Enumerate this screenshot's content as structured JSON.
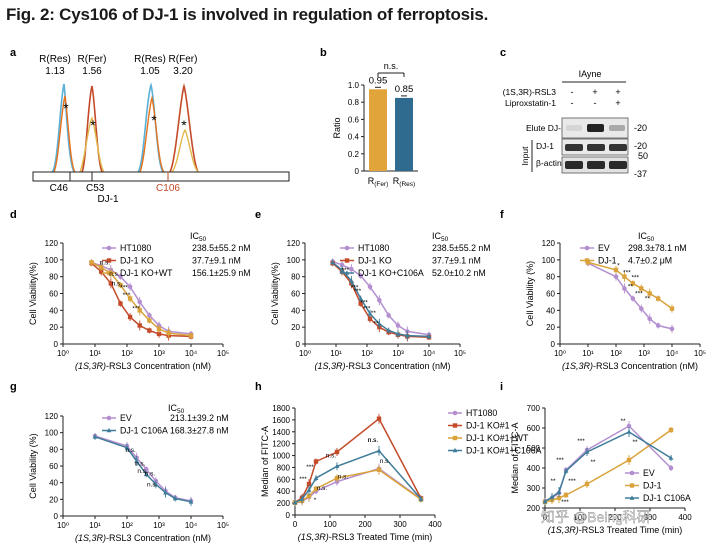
{
  "figure_title": "Fig. 2: Cys106 of DJ-1 is involved in regulation of ferroptosis.",
  "watermark": "知乎 @Being科研",
  "colors": {
    "purple": "#b48fd0",
    "red": "#c44a2a",
    "gold": "#d9a23a",
    "blue": "#3f7c99",
    "cyan": "#5bb0d8",
    "orange": "#e5731f",
    "bar_orange": "#e0a43a",
    "bar_blue": "#2f6b8f"
  },
  "panel_a": {
    "label": "a",
    "peaks": [
      {
        "label": "R(Res)",
        "ratio": "1.13"
      },
      {
        "label": "R(Fer)",
        "ratio": "1.56"
      },
      {
        "label": "R(Res)",
        "ratio": "1.05"
      },
      {
        "label": "R(Fer)",
        "ratio": "3.20"
      }
    ],
    "residues": [
      "C46",
      "C53",
      "C106"
    ],
    "protein": "DJ-1",
    "marker": "*"
  },
  "panel_b": {
    "label": "b",
    "chart_data": {
      "type": "bar",
      "categories": [
        "R(Fer)",
        "R(Res)"
      ],
      "values": [
        0.95,
        0.85
      ],
      "value_labels": [
        "0.95",
        "0.85"
      ],
      "ylabel": "Ratio",
      "ylim": [
        0,
        1.0
      ],
      "yticks": [
        "0",
        "0.2",
        "0.4",
        "0.6",
        "0.8",
        "1.0"
      ],
      "significance": "n.s."
    }
  },
  "panel_c": {
    "label": "c",
    "header": "IAyne",
    "conditions": [
      {
        "name": "(1S,3R)-RSL3",
        "marks": [
          "-",
          "+",
          "+"
        ]
      },
      {
        "name": "Liproxstatin-1",
        "marks": [
          "-",
          "-",
          "+"
        ]
      }
    ],
    "rows": [
      "Elute DJ-1",
      "DJ-1",
      "β-actin"
    ],
    "input_label": "Input",
    "mw_markers": [
      "-20",
      "-20",
      "50",
      "-37"
    ]
  },
  "chart_data": [
    {
      "panel": "d",
      "type": "line",
      "xlabel": "(1S,3R)-RSL3 Concentration (nM)",
      "ylabel": "Cell Viability(%)",
      "x": [
        7.8,
        15.6,
        31.3,
        62.5,
        125,
        250,
        500,
        1000,
        2000,
        10000
      ],
      "ylim": [
        0,
        120
      ],
      "xlim": [
        1,
        100000
      ],
      "yticks": [
        "0",
        "20",
        "40",
        "60",
        "80",
        "100",
        "120"
      ],
      "xticks": [
        "10⁰",
        "10¹",
        "10²",
        "10³",
        "10⁴",
        "10⁵"
      ],
      "ic50_header": "IC50",
      "series": [
        {
          "name": "HT1080",
          "ic50": "238.5±55.2 nM",
          "color": "purple",
          "values": [
            97,
            93,
            88,
            80,
            68,
            50,
            34,
            22,
            15,
            12
          ]
        },
        {
          "name": "DJ-1 KO",
          "ic50": "37.7±9.1 nM",
          "color": "red",
          "values": [
            96,
            86,
            72,
            48,
            32,
            22,
            16,
            12,
            10,
            9
          ]
        },
        {
          "name": "DJ-1 KO+WT",
          "ic50": "156.1±25.9 nM",
          "color": "gold",
          "values": [
            97,
            91,
            84,
            70,
            54,
            40,
            28,
            18,
            13,
            10
          ]
        }
      ],
      "annotations": [
        "n.s.",
        "n.s.",
        "n.s.",
        "***",
        "***",
        "***"
      ]
    },
    {
      "panel": "e",
      "type": "line",
      "xlabel": "(1S,3R)-RSL3 Concentration (nM)",
      "ylabel": "Cell Viability(%)",
      "x": [
        7.8,
        15.6,
        31.3,
        62.5,
        125,
        250,
        500,
        1000,
        2000,
        10000
      ],
      "ylim": [
        0,
        120
      ],
      "xlim": [
        1,
        100000
      ],
      "yticks": [
        "0",
        "20",
        "40",
        "60",
        "80",
        "100",
        "120"
      ],
      "xticks": [
        "10⁰",
        "10¹",
        "10²",
        "10³",
        "10⁴",
        "10⁵"
      ],
      "ic50_header": "IC50",
      "series": [
        {
          "name": "HT1080",
          "ic50": "238.5±55.2 nM",
          "color": "purple",
          "values": [
            98,
            94,
            89,
            81,
            68,
            52,
            34,
            22,
            15,
            11
          ]
        },
        {
          "name": "DJ-1 KO",
          "ic50": "37.7±9.1 nM",
          "color": "red",
          "values": [
            96,
            86,
            72,
            48,
            30,
            20,
            14,
            11,
            9,
            8
          ]
        },
        {
          "name": "DJ-1 KO+C106A",
          "ic50": "52.0±10.2 nM",
          "color": "blue",
          "values": [
            97,
            88,
            75,
            54,
            36,
            24,
            16,
            12,
            10,
            9
          ]
        }
      ],
      "annotations": [
        "***",
        "***",
        "***",
        "***",
        "***",
        "**",
        "**"
      ]
    },
    {
      "panel": "f",
      "type": "line",
      "xlabel": "(1S,3R)-RSL3 Concentration (nM)",
      "ylabel": "Cell Viability (%)",
      "x": [
        10,
        100,
        200,
        400,
        800,
        1600,
        3200,
        10000
      ],
      "ylim": [
        0,
        120
      ],
      "xlim": [
        1,
        100000
      ],
      "yticks": [
        "0",
        "20",
        "40",
        "60",
        "80",
        "100",
        "120"
      ],
      "xticks": [
        "10⁰",
        "10¹",
        "10²",
        "10³",
        "10⁴",
        "10⁵"
      ],
      "ic50_header": "IC50",
      "series": [
        {
          "name": "EV",
          "ic50": "298.3±78.1 nM",
          "color": "purple",
          "values": [
            96,
            80,
            66,
            54,
            42,
            30,
            22,
            18
          ]
        },
        {
          "name": "DJ-1",
          "ic50": "4.7±0.2 μM",
          "color": "gold",
          "values": [
            97,
            88,
            80,
            72,
            66,
            60,
            54,
            42
          ]
        }
      ],
      "annotations": [
        "*",
        "**",
        "***",
        "***",
        "***",
        "**"
      ]
    },
    {
      "panel": "g",
      "type": "line",
      "xlabel": "(1S,3R)-RSL3 Concentration (nM)",
      "ylabel": "Cell Viability (%)",
      "x": [
        10,
        100,
        200,
        400,
        800,
        1600,
        3200,
        10000
      ],
      "ylim": [
        0,
        120
      ],
      "xlim": [
        1,
        100000
      ],
      "yticks": [
        "0",
        "20",
        "40",
        "60",
        "80",
        "100",
        "120"
      ],
      "xticks": [
        "10⁰",
        "10¹",
        "10²",
        "10³",
        "10⁴",
        "10⁵"
      ],
      "ic50_header": "IC50",
      "series": [
        {
          "name": "EV",
          "ic50": "213.1±39.2 nM",
          "color": "purple",
          "values": [
            96,
            84,
            70,
            56,
            42,
            30,
            22,
            18
          ]
        },
        {
          "name": "DJ-1 C106A",
          "ic50": "168.3±27.8 nM",
          "color": "blue",
          "values": [
            95,
            82,
            66,
            50,
            38,
            28,
            21,
            17
          ]
        }
      ],
      "annotations": [
        "n.s.",
        "n.s.",
        "n.s.",
        "n.s.",
        "n.s."
      ]
    },
    {
      "panel": "h",
      "type": "line",
      "xlabel": "(1S,3R)-RSL3 Treated Time (min)",
      "ylabel": "Median of FITC-A",
      "x": [
        0,
        20,
        40,
        60,
        120,
        240,
        360
      ],
      "ylim": [
        0,
        1800
      ],
      "xlim": [
        0,
        400
      ],
      "yticks": [
        "0",
        "200",
        "400",
        "600",
        "800",
        "1000",
        "1200",
        "1400",
        "1600",
        "1800"
      ],
      "xticks": [
        "0",
        "100",
        "200",
        "300",
        "400"
      ],
      "series": [
        {
          "name": "HT1080",
          "color": "purple",
          "values": [
            200,
            230,
            300,
            400,
            560,
            780,
            270
          ]
        },
        {
          "name": "DJ-1 KO#1",
          "color": "red",
          "values": [
            210,
            290,
            520,
            900,
            1060,
            1620,
            280
          ]
        },
        {
          "name": "DJ-1 KO#1+WT",
          "color": "gold",
          "values": [
            205,
            240,
            320,
            440,
            620,
            760,
            260
          ]
        },
        {
          "name": "DJ-1 KO#1+C106A",
          "color": "blue",
          "values": [
            210,
            270,
            420,
            620,
            820,
            1080,
            270
          ]
        }
      ],
      "annotations": [
        "***",
        "*",
        "***",
        "n.s.",
        "n.s.",
        "n.s.",
        "n.s.",
        "n.s.",
        "n.s."
      ]
    },
    {
      "panel": "i",
      "type": "line",
      "xlabel": "(1S,3R)-RSL3 Treated Time (min)",
      "ylabel": "Median of FITC-A",
      "x": [
        0,
        20,
        40,
        60,
        120,
        240,
        360
      ],
      "ylim": [
        200,
        700
      ],
      "xlim": [
        0,
        400
      ],
      "yticks": [
        "200",
        "300",
        "400",
        "500",
        "600",
        "700"
      ],
      "xticks": [
        "0",
        "100",
        "200",
        "300",
        "400"
      ],
      "series": [
        {
          "name": "EV",
          "color": "purple",
          "values": [
            235,
            250,
            275,
            390,
            490,
            610,
            400
          ]
        },
        {
          "name": "DJ-1",
          "color": "gold",
          "values": [
            230,
            240,
            250,
            265,
            320,
            440,
            590
          ]
        },
        {
          "name": "DJ-1 C106A",
          "color": "blue",
          "values": [
            232,
            255,
            280,
            385,
            480,
            580,
            450
          ]
        }
      ],
      "annotations": [
        "**",
        "***",
        "***",
        "***",
        "***",
        "**",
        "**",
        "**"
      ]
    }
  ]
}
